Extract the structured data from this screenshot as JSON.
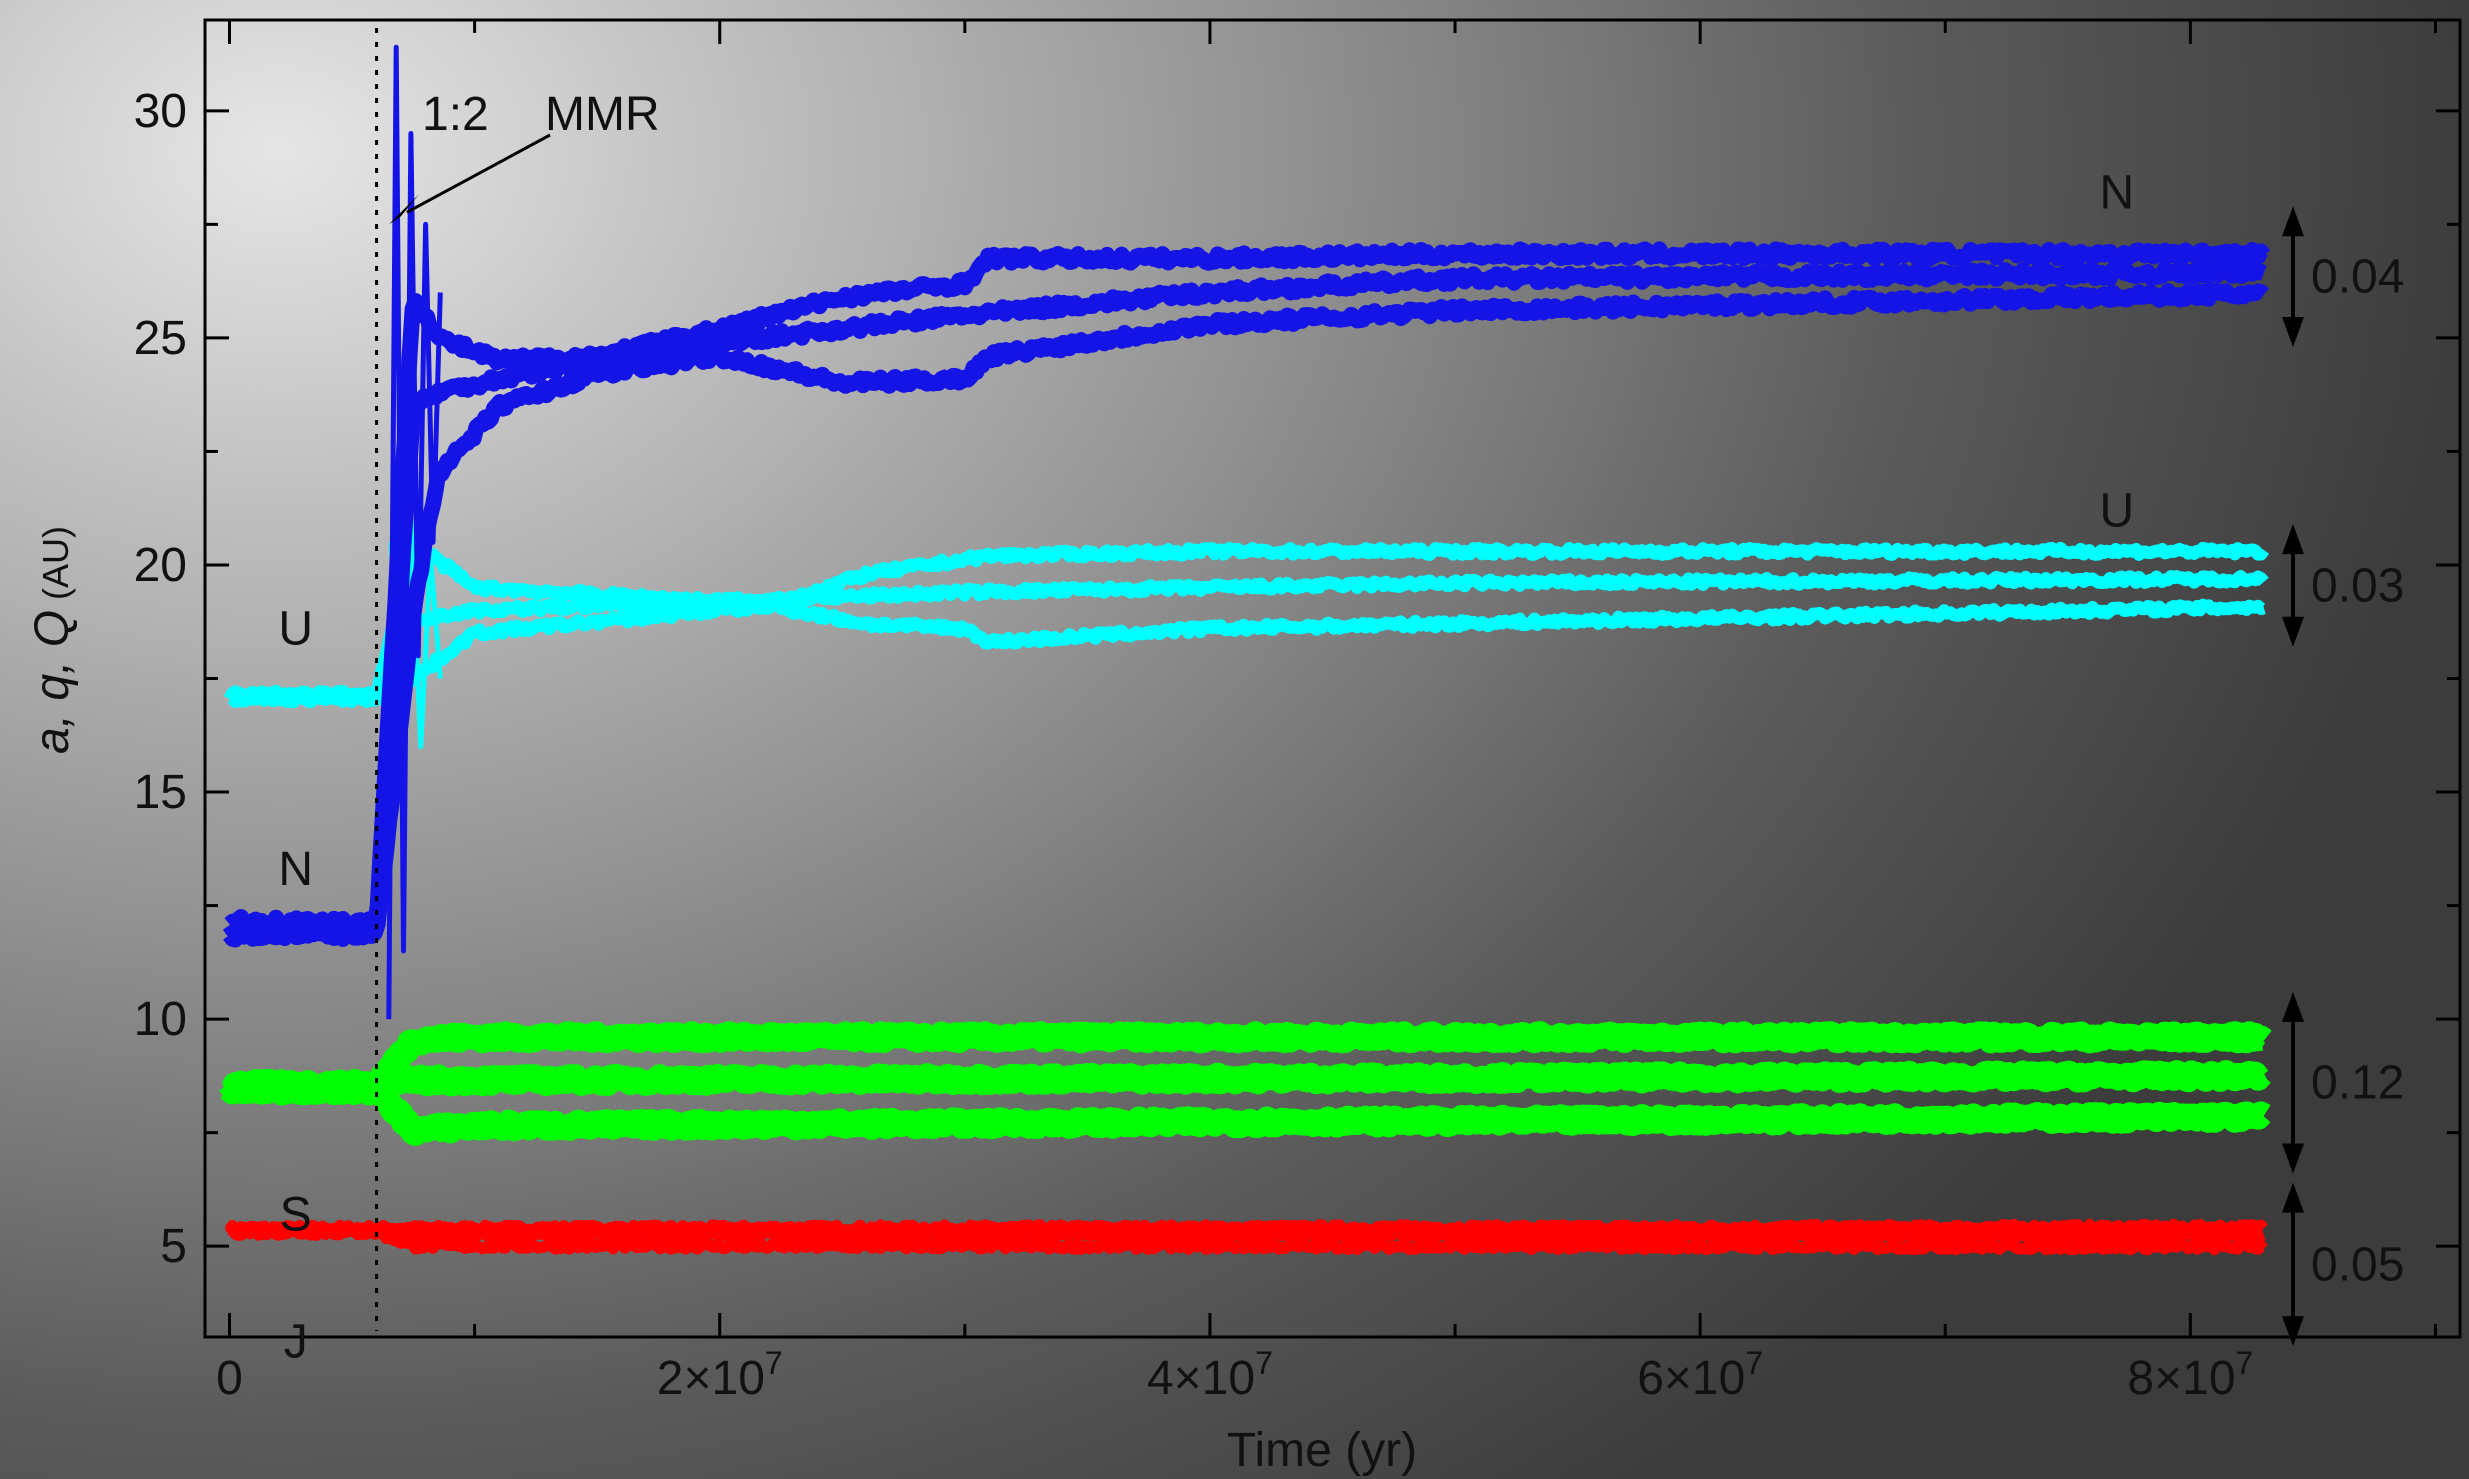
{
  "chart_data": {
    "type": "line",
    "title": "",
    "xlabel": "Time (yr)",
    "ylabel": {
      "italic": "a, q, Q",
      "unit": "(AU)"
    },
    "xlim": [
      -1000000,
      91000000
    ],
    "ylim": [
      3,
      32
    ],
    "grid": false,
    "xticks": [
      {
        "value": 0,
        "mantissa": "0",
        "exp": ""
      },
      {
        "value": 20000000,
        "mantissa": "2×10",
        "exp": "7"
      },
      {
        "value": 40000000,
        "mantissa": "4×10",
        "exp": "7"
      },
      {
        "value": 60000000,
        "mantissa": "6×10",
        "exp": "7"
      },
      {
        "value": 80000000,
        "mantissa": "8×10",
        "exp": "7"
      }
    ],
    "yticks": [
      5,
      10,
      15,
      20,
      25,
      30
    ],
    "instability_time": 6000000,
    "annotation": {
      "label_ratio": "1:2",
      "label_text": "MMR",
      "x": 6500000,
      "y": 27.5
    },
    "planet_labels_left": [
      {
        "label": "U",
        "x": 2700000,
        "y": 18.6
      },
      {
        "label": "N",
        "x": 2700000,
        "y": 13.3
      },
      {
        "label": "S",
        "x": 2700000,
        "y": 5.7
      },
      {
        "label": "J",
        "x": 2700000,
        "y": 2.9
      }
    ],
    "planet_labels_right": [
      {
        "label": "N",
        "x": 77000000,
        "y": 28.2
      },
      {
        "label": "U",
        "x": 77000000,
        "y": 21.2
      }
    ],
    "eccentricity_markers": [
      {
        "label": "0.04",
        "y_top": 27.9,
        "y_bottom": 24.8
      },
      {
        "label": "0.03",
        "y_top": 20.9,
        "y_bottom": 18.2
      },
      {
        "label": "0.12",
        "y_top": 10.6,
        "y_bottom": 6.6
      },
      {
        "label": "0.05",
        "y_top": 6.4,
        "y_bottom": 2.8
      }
    ],
    "series": [
      {
        "planet": "J",
        "color": "#ff0000",
        "band": 0.25,
        "noise": 0.06,
        "Q": {
          "x": [
            0,
            6000000,
            7500000,
            85000000
          ],
          "y": [
            5.4,
            5.4,
            5.4,
            5.42
          ]
        },
        "a": {
          "x": [
            0,
            6000000,
            7500000,
            85000000
          ],
          "y": [
            5.35,
            5.35,
            5.25,
            5.22
          ]
        },
        "q": {
          "x": [
            0,
            6000000,
            7500000,
            85000000
          ],
          "y": [
            5.3,
            5.3,
            5.0,
            4.98
          ]
        }
      },
      {
        "planet": "S",
        "color": "#00ff00",
        "band": 0.55,
        "noise": 0.08,
        "Q": {
          "x": [
            0,
            6000000,
            7500000,
            10000000,
            85000000
          ],
          "y": [
            8.55,
            8.55,
            9.55,
            9.6,
            9.6
          ]
        },
        "a": {
          "x": [
            0,
            6000000,
            7500000,
            85000000
          ],
          "y": [
            8.5,
            8.5,
            8.65,
            8.75
          ]
        },
        "q": {
          "x": [
            0,
            6000000,
            7500000,
            10000000,
            85000000
          ],
          "y": [
            8.45,
            8.45,
            7.55,
            7.65,
            7.85
          ]
        }
      },
      {
        "planet": "U",
        "color": "#00ffff",
        "band": 0.28,
        "noise": 0.07,
        "Q": {
          "x": [
            0,
            6000000,
            7500000,
            10000000,
            20000000,
            22000000,
            26000000,
            31000000,
            40000000,
            85000000
          ],
          "y": [
            17.15,
            17.15,
            20.5,
            19.5,
            19.2,
            19.1,
            19.8,
            20.2,
            20.3,
            20.3
          ]
        },
        "a": {
          "x": [
            0,
            6000000,
            7500000,
            10000000,
            20000000,
            30000000,
            50000000,
            85000000
          ],
          "y": [
            17.1,
            17.1,
            18.8,
            19.0,
            19.2,
            19.4,
            19.6,
            19.7
          ]
        },
        "q": {
          "x": [
            0,
            6000000,
            7500000,
            10000000,
            20000000,
            22000000,
            26000000,
            30000000,
            31000000,
            40000000,
            85000000
          ],
          "y": [
            17.05,
            17.05,
            17.5,
            18.5,
            19.0,
            19.1,
            18.7,
            18.6,
            18.3,
            18.6,
            19.1
          ]
        },
        "spike": {
          "x": [
            6600000,
            7000000,
            7400000,
            7800000,
            8200000,
            8600000
          ],
          "y": [
            20.5,
            15.0,
            21.0,
            16.0,
            20.2,
            17.5
          ]
        }
      },
      {
        "planet": "N",
        "color": "#1414e6",
        "band": 0.35,
        "noise": 0.1,
        "Q": {
          "x": [
            0,
            6000000,
            7500000,
            8500000,
            11000000,
            15000000,
            20000000,
            25000000,
            30000000,
            31000000,
            40000000,
            50000000,
            85000000
          ],
          "y": [
            12.15,
            12.15,
            26.0,
            25.0,
            24.5,
            24.6,
            25.2,
            25.9,
            26.2,
            26.75,
            26.75,
            26.85,
            26.85
          ]
        },
        "a": {
          "x": [
            0,
            6000000,
            7500000,
            8500000,
            11000000,
            15000000,
            20000000,
            30000000,
            40000000,
            50000000,
            85000000
          ],
          "y": [
            12.0,
            12.0,
            23.5,
            23.8,
            24.1,
            24.5,
            24.9,
            25.5,
            26.0,
            26.3,
            26.45
          ]
        },
        "q": {
          "x": [
            0,
            6000000,
            7500000,
            8500000,
            11000000,
            15000000,
            20000000,
            25000000,
            30000000,
            31000000,
            40000000,
            50000000,
            85000000
          ],
          "y": [
            11.85,
            11.85,
            19.0,
            22.0,
            23.5,
            24.2,
            24.6,
            24.0,
            24.1,
            24.6,
            25.3,
            25.6,
            26.0
          ]
        },
        "spike": {
          "x": [
            6500000,
            6800000,
            7100000,
            7400000,
            7700000,
            8000000,
            8300000,
            8600000
          ],
          "y": [
            10.0,
            31.4,
            11.5,
            29.5,
            18.0,
            27.5,
            20.5,
            26.0
          ]
        }
      }
    ]
  }
}
